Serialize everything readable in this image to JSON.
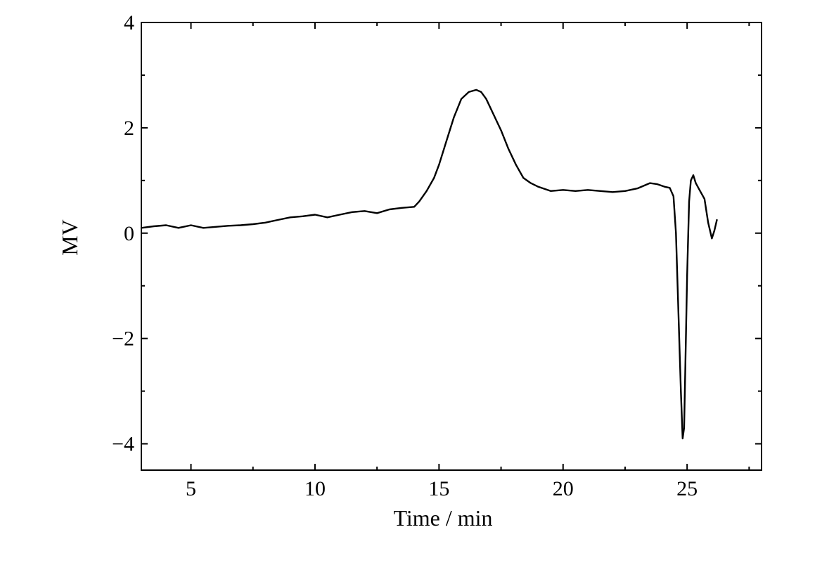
{
  "chart_data": {
    "type": "line",
    "xlabel": "Time / min",
    "ylabel": "MV",
    "xlim": [
      3,
      28
    ],
    "ylim": [
      -4.5,
      4
    ],
    "x_ticks": [
      5,
      10,
      15,
      20,
      25
    ],
    "x_tick_labels": [
      "5",
      "10",
      "15",
      "20",
      "25"
    ],
    "y_ticks": [
      4,
      2,
      0,
      -2,
      -4
    ],
    "y_tick_labels": [
      "4",
      "2",
      "0",
      "−2",
      "−4"
    ],
    "x_minor_step": 2.5,
    "y_minor_step": 1,
    "grid": false,
    "series": [
      {
        "color": "#000000",
        "x": [
          3.0,
          3.5,
          4.0,
          4.5,
          5.0,
          5.5,
          6.0,
          6.5,
          7.0,
          7.5,
          8.0,
          8.5,
          9.0,
          9.5,
          10.0,
          10.5,
          11.0,
          11.5,
          12.0,
          12.5,
          13.0,
          13.5,
          14.0,
          14.2,
          14.5,
          14.8,
          15.0,
          15.3,
          15.6,
          15.9,
          16.2,
          16.5,
          16.7,
          16.9,
          17.2,
          17.5,
          17.8,
          18.1,
          18.4,
          18.7,
          19.0,
          19.5,
          20.0,
          20.5,
          21.0,
          21.5,
          22.0,
          22.5,
          23.0,
          23.5,
          23.8,
          24.1,
          24.3,
          24.45,
          24.55,
          24.65,
          24.75,
          24.82,
          24.88,
          24.93,
          25.0,
          25.08,
          25.15,
          25.25,
          25.35,
          25.5,
          25.7,
          25.85,
          26.0,
          26.1,
          26.2
        ],
        "y": [
          0.1,
          0.13,
          0.15,
          0.1,
          0.15,
          0.1,
          0.12,
          0.14,
          0.15,
          0.17,
          0.2,
          0.25,
          0.3,
          0.32,
          0.35,
          0.3,
          0.35,
          0.4,
          0.42,
          0.38,
          0.45,
          0.48,
          0.5,
          0.6,
          0.8,
          1.05,
          1.3,
          1.75,
          2.2,
          2.55,
          2.68,
          2.72,
          2.68,
          2.55,
          2.25,
          1.95,
          1.6,
          1.3,
          1.05,
          0.95,
          0.88,
          0.8,
          0.82,
          0.8,
          0.82,
          0.8,
          0.78,
          0.8,
          0.85,
          0.95,
          0.93,
          0.88,
          0.86,
          0.7,
          0.0,
          -1.5,
          -3.0,
          -3.9,
          -3.7,
          -2.5,
          -0.8,
          0.6,
          1.0,
          1.1,
          0.95,
          0.82,
          0.65,
          0.2,
          -0.1,
          0.05,
          0.25
        ]
      }
    ]
  }
}
